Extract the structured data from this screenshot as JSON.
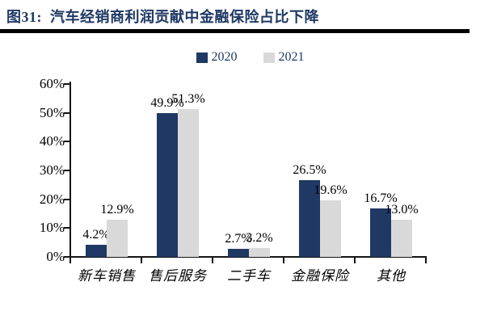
{
  "header": {
    "title": "图31:  汽车经销商利润贡献中金融保险占比下降",
    "title_color": "#1f3864",
    "rule_color": "#000000"
  },
  "chart_data": {
    "type": "bar",
    "title": "汽车经销商利润贡献中金融保险占比下降",
    "figure_label": "图31",
    "categories": [
      "新车销售",
      "售后服务",
      "二手车",
      "金融保险",
      "其他"
    ],
    "series": [
      {
        "name": "2020",
        "color": "#1f3864",
        "values": [
          4.2,
          49.9,
          2.7,
          26.5,
          16.7
        ]
      },
      {
        "name": "2021",
        "color": "#d9d9d9",
        "values": [
          12.9,
          51.3,
          3.2,
          19.6,
          13.0
        ]
      }
    ],
    "data_labels": [
      [
        "4.2%",
        "49.9%",
        "2.7%",
        "26.5%",
        "16.7%"
      ],
      [
        "12.9%",
        "51.3%",
        "3.2%",
        "19.6%",
        "13.0%"
      ]
    ],
    "y_ticks": [
      "0%",
      "10%",
      "20%",
      "30%",
      "40%",
      "50%",
      "60%"
    ],
    "ylim": [
      0,
      60
    ],
    "xlabel": "",
    "ylabel": "",
    "grid": false,
    "legend_position": "top",
    "legend_text_color": "#1f3864",
    "axis_color": "#141414"
  }
}
